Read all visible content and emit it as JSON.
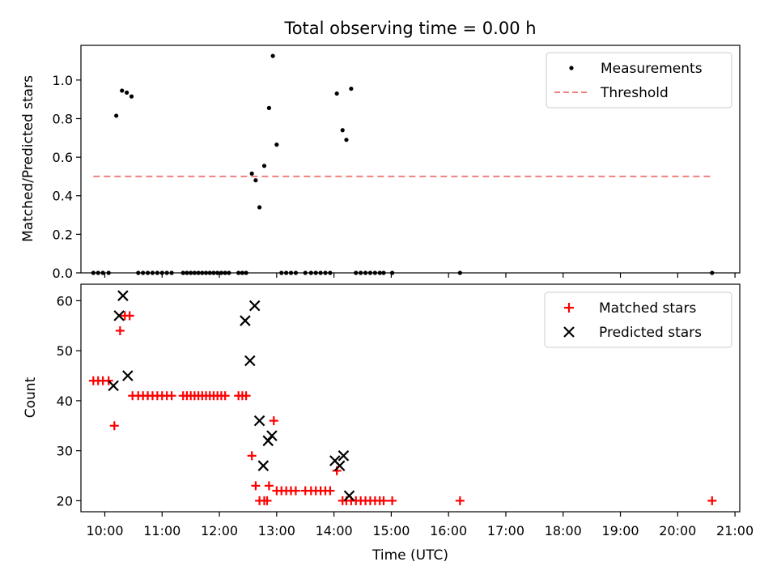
{
  "title": "Total observing time = 0.00 h",
  "xlabel": "Time (UTC)",
  "x_ticks": [
    "10:00",
    "11:00",
    "12:00",
    "13:00",
    "14:00",
    "15:00",
    "16:00",
    "17:00",
    "18:00",
    "19:00",
    "20:00",
    "21:00"
  ],
  "colors": {
    "measurement": "#000000",
    "threshold": "#f08080",
    "matched": "#ff0000",
    "predicted": "#000000"
  },
  "chart_data": [
    {
      "type": "scatter",
      "ylabel": "Matched/Predicted stars",
      "xlim": [
        "09:35",
        "21:05"
      ],
      "ylim": [
        0,
        1.18
      ],
      "y_ticks": [
        "0.0",
        "0.2",
        "0.4",
        "0.6",
        "0.8",
        "1.0"
      ],
      "legend_position": "top-right",
      "series": [
        {
          "name": "Measurements",
          "marker": "dot",
          "points": [
            [
              "09:48",
              0
            ],
            [
              "09:53",
              0
            ],
            [
              "09:58",
              0
            ],
            [
              "10:04",
              0
            ],
            [
              "10:12",
              0.815
            ],
            [
              "10:18",
              0.945
            ],
            [
              "10:23",
              0.935
            ],
            [
              "10:28",
              0.915
            ],
            [
              "10:35",
              0
            ],
            [
              "10:40",
              0
            ],
            [
              "10:45",
              0
            ],
            [
              "10:50",
              0
            ],
            [
              "10:55",
              0
            ],
            [
              "11:00",
              0
            ],
            [
              "11:05",
              0
            ],
            [
              "11:10",
              0
            ],
            [
              "11:22",
              0
            ],
            [
              "11:26",
              0
            ],
            [
              "11:30",
              0
            ],
            [
              "11:34",
              0
            ],
            [
              "11:38",
              0
            ],
            [
              "11:42",
              0
            ],
            [
              "11:46",
              0
            ],
            [
              "11:50",
              0
            ],
            [
              "11:54",
              0
            ],
            [
              "11:58",
              0
            ],
            [
              "12:02",
              0
            ],
            [
              "12:06",
              0
            ],
            [
              "12:10",
              0
            ],
            [
              "12:20",
              0
            ],
            [
              "12:24",
              0
            ],
            [
              "12:28",
              0
            ],
            [
              "12:34",
              0.515
            ],
            [
              "12:38",
              0.48
            ],
            [
              "12:42",
              0.34
            ],
            [
              "12:47",
              0.555
            ],
            [
              "12:52",
              0.855
            ],
            [
              "12:56",
              1.125
            ],
            [
              "13:00",
              0.665
            ],
            [
              "13:05",
              0
            ],
            [
              "13:10",
              0
            ],
            [
              "13:15",
              0
            ],
            [
              "13:20",
              0
            ],
            [
              "13:30",
              0
            ],
            [
              "13:36",
              0
            ],
            [
              "13:41",
              0
            ],
            [
              "13:46",
              0
            ],
            [
              "13:51",
              0
            ],
            [
              "13:56",
              0
            ],
            [
              "14:03",
              0.93
            ],
            [
              "14:09",
              0.74
            ],
            [
              "14:13",
              0.69
            ],
            [
              "14:18",
              0.955
            ],
            [
              "14:23",
              0
            ],
            [
              "14:28",
              0
            ],
            [
              "14:33",
              0
            ],
            [
              "14:38",
              0
            ],
            [
              "14:43",
              0
            ],
            [
              "14:48",
              0
            ],
            [
              "14:52",
              0
            ],
            [
              "15:01",
              0
            ],
            [
              "16:12",
              0
            ],
            [
              "20:36",
              0
            ]
          ]
        },
        {
          "name": "Threshold",
          "style": "dashed",
          "points": [
            [
              "09:48",
              0.5
            ],
            [
              "20:36",
              0.5
            ]
          ]
        }
      ]
    },
    {
      "type": "scatter",
      "ylabel": "Count",
      "xlim": [
        "09:35",
        "21:05"
      ],
      "ylim": [
        17.8,
        63.3
      ],
      "y_ticks": [
        "20",
        "30",
        "40",
        "50",
        "60"
      ],
      "legend_position": "top-right",
      "series": [
        {
          "name": "Matched stars",
          "marker": "plus",
          "points": [
            [
              "09:48",
              44
            ],
            [
              "09:53",
              44
            ],
            [
              "09:58",
              44
            ],
            [
              "10:04",
              44
            ],
            [
              "10:10",
              35
            ],
            [
              "10:16",
              54
            ],
            [
              "10:21",
              57
            ],
            [
              "10:26",
              57
            ],
            [
              "10:29",
              41
            ],
            [
              "10:35",
              41
            ],
            [
              "10:40",
              41
            ],
            [
              "10:45",
              41
            ],
            [
              "10:50",
              41
            ],
            [
              "10:55",
              41
            ],
            [
              "11:00",
              41
            ],
            [
              "11:05",
              41
            ],
            [
              "11:10",
              41
            ],
            [
              "11:22",
              41
            ],
            [
              "11:26",
              41
            ],
            [
              "11:30",
              41
            ],
            [
              "11:34",
              41
            ],
            [
              "11:38",
              41
            ],
            [
              "11:42",
              41
            ],
            [
              "11:46",
              41
            ],
            [
              "11:50",
              41
            ],
            [
              "11:54",
              41
            ],
            [
              "11:58",
              41
            ],
            [
              "12:02",
              41
            ],
            [
              "12:06",
              41
            ],
            [
              "12:20",
              41
            ],
            [
              "12:24",
              41
            ],
            [
              "12:28",
              41
            ],
            [
              "12:34",
              29
            ],
            [
              "12:38",
              23
            ],
            [
              "12:42",
              20
            ],
            [
              "12:47",
              20
            ],
            [
              "12:50",
              20
            ],
            [
              "12:52",
              23
            ],
            [
              "12:57",
              36
            ],
            [
              "13:00",
              22
            ],
            [
              "13:05",
              22
            ],
            [
              "13:10",
              22
            ],
            [
              "13:15",
              22
            ],
            [
              "13:20",
              22
            ],
            [
              "13:30",
              22
            ],
            [
              "13:36",
              22
            ],
            [
              "13:41",
              22
            ],
            [
              "13:46",
              22
            ],
            [
              "13:51",
              22
            ],
            [
              "13:56",
              22
            ],
            [
              "14:03",
              26
            ],
            [
              "14:09",
              20
            ],
            [
              "14:13",
              20
            ],
            [
              "14:18",
              20
            ],
            [
              "14:23",
              20
            ],
            [
              "14:28",
              20
            ],
            [
              "14:33",
              20
            ],
            [
              "14:38",
              20
            ],
            [
              "14:43",
              20
            ],
            [
              "14:48",
              20
            ],
            [
              "14:52",
              20
            ],
            [
              "15:01",
              20
            ],
            [
              "16:12",
              20
            ],
            [
              "20:36",
              20
            ]
          ]
        },
        {
          "name": "Predicted stars",
          "marker": "x",
          "points": [
            [
              "10:09",
              43
            ],
            [
              "10:15",
              57
            ],
            [
              "10:19",
              61
            ],
            [
              "10:24",
              45
            ],
            [
              "12:27",
              56
            ],
            [
              "12:32",
              48
            ],
            [
              "12:37",
              59
            ],
            [
              "12:42",
              36
            ],
            [
              "12:46",
              27
            ],
            [
              "12:51",
              32
            ],
            [
              "12:55",
              33
            ],
            [
              "14:01",
              28
            ],
            [
              "14:06",
              27
            ],
            [
              "14:10",
              29
            ],
            [
              "14:16",
              21
            ]
          ]
        }
      ]
    }
  ]
}
